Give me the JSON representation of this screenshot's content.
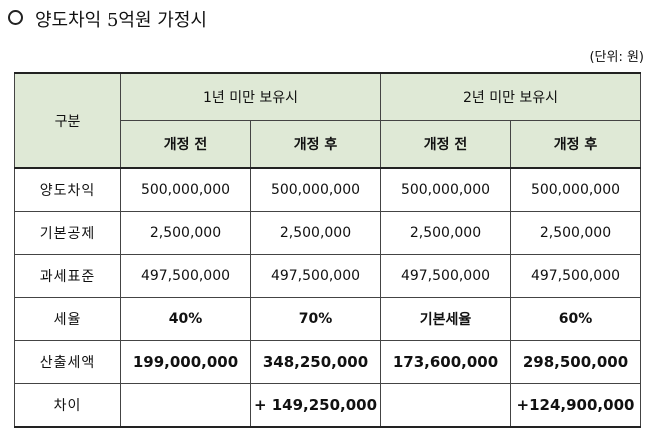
{
  "title": "양도차익 5억원 가정시",
  "unit": "(단위: 원)",
  "table": {
    "header": {
      "category": "구분",
      "group1": "1년 미만 보유시",
      "group2": "2년 미만 보유시",
      "sub": [
        "개정 전",
        "개정 후",
        "개정 전",
        "개정 후"
      ]
    },
    "rows": [
      {
        "label": "양도차익",
        "values": [
          "500,000,000",
          "500,000,000",
          "500,000,000",
          "500,000,000"
        ]
      },
      {
        "label": "기본공제",
        "values": [
          "2,500,000",
          "2,500,000",
          "2,500,000",
          "2,500,000"
        ]
      },
      {
        "label": "과세표준",
        "values": [
          "497,500,000",
          "497,500,000",
          "497,500,000",
          "497,500,000"
        ]
      },
      {
        "label": "세율",
        "values": [
          "40%",
          "70%",
          "기본세율",
          "60%"
        ]
      },
      {
        "label": "산출세액",
        "values": [
          "199,000,000",
          "348,250,000",
          "173,600,000",
          "298,500,000"
        ]
      },
      {
        "label": "차이",
        "values": [
          "",
          "+ 149,250,000",
          "",
          "+124,900,000"
        ]
      }
    ]
  }
}
